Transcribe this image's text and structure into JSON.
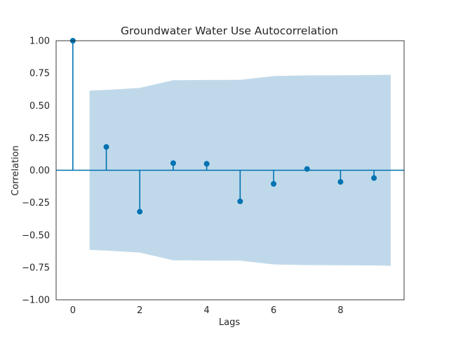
{
  "chart_data": {
    "type": "stem",
    "title": "Groundwater Water Use Autocorrelation",
    "xlabel": "Lags",
    "ylabel": "Correlation",
    "xlim": [
      -0.5,
      9.9
    ],
    "ylim": [
      -1.0,
      1.0
    ],
    "xticks": [
      0,
      2,
      4,
      6,
      8
    ],
    "yticks": [
      -1.0,
      -0.75,
      -0.5,
      -0.25,
      0.0,
      0.25,
      0.5,
      0.75,
      1.0
    ],
    "ytick_labels": [
      "−1.00",
      "−0.75",
      "−0.50",
      "−0.25",
      "0.00",
      "0.25",
      "0.50",
      "0.75",
      "1.00"
    ],
    "xtick_labels": [
      "0",
      "2",
      "4",
      "6",
      "8"
    ],
    "grid": false,
    "series": [
      {
        "lags": [
          0,
          1,
          2,
          3,
          4,
          5,
          6,
          7,
          8,
          9
        ],
        "values": [
          1.0,
          0.18,
          -0.32,
          0.055,
          0.05,
          -0.24,
          -0.105,
          0.01,
          -0.09,
          -0.06
        ]
      }
    ],
    "confidence_band": {
      "lags": [
        0.5,
        1,
        2,
        3,
        4,
        5,
        6,
        7,
        8,
        9,
        9.5
      ],
      "upper": [
        0.615,
        0.62,
        0.635,
        0.695,
        0.697,
        0.698,
        0.727,
        0.732,
        0.733,
        0.735,
        0.737
      ]
    },
    "colors": {
      "stem": "#0072b2",
      "band": "#c0d9ea",
      "zero_line": "#0072b2"
    }
  }
}
